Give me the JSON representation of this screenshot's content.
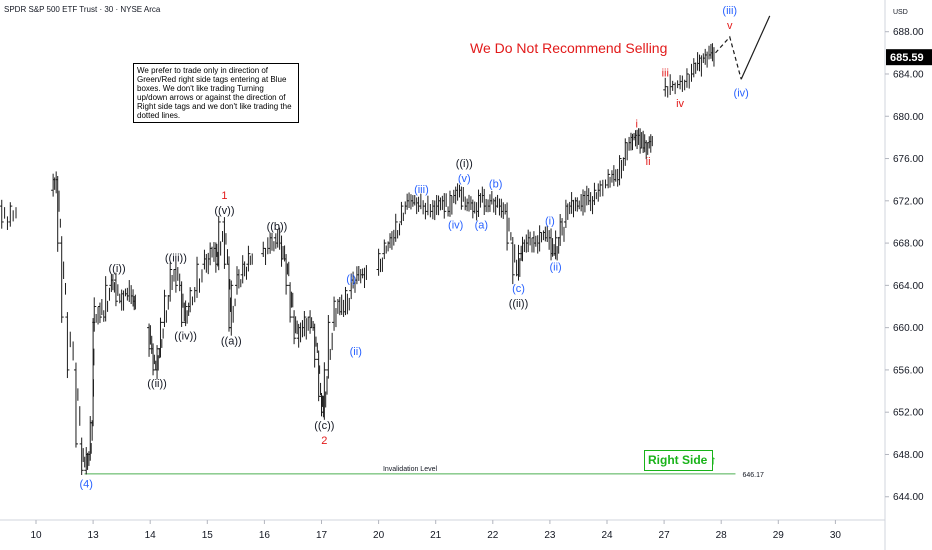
{
  "header": {
    "title": "SPDR S&P 500 ETF Trust · 30 · NYSE Arca"
  },
  "note": {
    "text": "We prefer to trade only in direction of Green/Red right side tags entering at Blue boxes. We don't like trading Turning up/down arrows or against the direction of Right side tags and we don't like trading the dotted lines."
  },
  "headline": {
    "text": "We Do Not Recommend Selling"
  },
  "right_side": {
    "label": "Right Side",
    "arrow": "↑"
  },
  "colors": {
    "red": "#e21a1a",
    "blue": "#2962ff",
    "black": "#131722",
    "green": "#19b319",
    "bars": "#1c1c1c",
    "axis_text": "#131722"
  },
  "chart_data": {
    "type": "ohlc",
    "currency": "USD",
    "y_ticks": [
      644,
      648,
      652,
      656,
      660,
      664,
      668,
      672,
      676,
      680,
      684,
      688
    ],
    "y_tick_labels": [
      "644.00",
      "648.00",
      "652.00",
      "656.00",
      "660.00",
      "664.00",
      "668.00",
      "672.00",
      "676.00",
      "680.00",
      "684.00",
      "688.00"
    ],
    "ylim": [
      641.8,
      691.0
    ],
    "x_labels": [
      {
        "label": "10",
        "day": 0
      },
      {
        "label": "13",
        "day": 1
      },
      {
        "label": "14",
        "day": 2
      },
      {
        "label": "15",
        "day": 3
      },
      {
        "label": "16",
        "day": 4
      },
      {
        "label": "17",
        "day": 5
      },
      {
        "label": "20",
        "day": 6
      },
      {
        "label": "21",
        "day": 7
      },
      {
        "label": "22",
        "day": 8
      },
      {
        "label": "23",
        "day": 9
      },
      {
        "label": "24",
        "day": 10
      },
      {
        "label": "27",
        "day": 11
      },
      {
        "label": "28",
        "day": 12
      },
      {
        "label": "29",
        "day": 13
      },
      {
        "label": "30",
        "day": 14
      }
    ],
    "current_price": {
      "value": 685.59,
      "label": "685.59"
    },
    "invalidation": {
      "value": 646.17,
      "label": "646.17",
      "text": "Invalidation Level",
      "day_start": 0.85,
      "day_end": 12.25
    },
    "price_path": [
      [
        -0.6,
        671.5
      ],
      [
        -0.45,
        670.0
      ],
      [
        -0.3,
        671.5
      ],
      [
        -0.1,
        672.0
      ],
      [
        0.1,
        672.5
      ],
      [
        0.3,
        673.0
      ],
      [
        0.38,
        674.0
      ],
      [
        0.45,
        668.0
      ],
      [
        0.55,
        661.0
      ],
      [
        0.7,
        656.0
      ],
      [
        0.8,
        649.0
      ],
      [
        0.88,
        646.5
      ],
      [
        0.95,
        648.0
      ],
      [
        1.0,
        651.0
      ],
      [
        1.02,
        660.5
      ],
      [
        1.12,
        662.0
      ],
      [
        1.22,
        661.0
      ],
      [
        1.32,
        664.0
      ],
      [
        1.4,
        664.5
      ],
      [
        1.5,
        662.5
      ],
      [
        1.6,
        663.2
      ],
      [
        1.7,
        663.0
      ],
      [
        1.76,
        662.5
      ],
      [
        1.98,
        660.0
      ],
      [
        2.05,
        658.0
      ],
      [
        2.12,
        656.0
      ],
      [
        2.18,
        658.0
      ],
      [
        2.25,
        660.5
      ],
      [
        2.35,
        663.0
      ],
      [
        2.45,
        665.5
      ],
      [
        2.55,
        664.0
      ],
      [
        2.62,
        660.5
      ],
      [
        2.7,
        662.0
      ],
      [
        2.82,
        663.5
      ],
      [
        2.95,
        666.0
      ],
      [
        3.05,
        666.5
      ],
      [
        3.15,
        667.5
      ],
      [
        3.2,
        666.0
      ],
      [
        3.3,
        670.0
      ],
      [
        3.38,
        666.0
      ],
      [
        3.42,
        660.0
      ],
      [
        3.52,
        664.0
      ],
      [
        3.62,
        665.0
      ],
      [
        3.72,
        666.0
      ],
      [
        3.82,
        667.0
      ],
      [
        3.98,
        667.0
      ],
      [
        4.1,
        667.5
      ],
      [
        4.2,
        668.5
      ],
      [
        4.3,
        668.0
      ],
      [
        4.38,
        666.5
      ],
      [
        4.45,
        664.0
      ],
      [
        4.52,
        661.0
      ],
      [
        4.6,
        659.0
      ],
      [
        4.7,
        660.0
      ],
      [
        4.8,
        661.0
      ],
      [
        4.88,
        660.0
      ],
      [
        4.95,
        657.0
      ],
      [
        5.0,
        653.5
      ],
      [
        5.05,
        652.0
      ],
      [
        5.12,
        656.0
      ],
      [
        5.22,
        660.5
      ],
      [
        5.32,
        662.5
      ],
      [
        5.42,
        661.5
      ],
      [
        5.52,
        663.5
      ],
      [
        5.62,
        664.5
      ],
      [
        5.72,
        665.0
      ],
      [
        5.82,
        665.0
      ],
      [
        6.0,
        665.5
      ],
      [
        6.1,
        667.0
      ],
      [
        6.2,
        668.0
      ],
      [
        6.3,
        668.5
      ],
      [
        6.4,
        670.0
      ],
      [
        6.5,
        671.5
      ],
      [
        6.6,
        672.0
      ],
      [
        6.7,
        671.8
      ],
      [
        6.82,
        671.5
      ],
      [
        6.95,
        671.0
      ],
      [
        7.05,
        671.5
      ],
      [
        7.15,
        672.0
      ],
      [
        7.25,
        671.0
      ],
      [
        7.35,
        672.5
      ],
      [
        7.45,
        673.0
      ],
      [
        7.55,
        671.5
      ],
      [
        7.65,
        671.8
      ],
      [
        7.75,
        671.0
      ],
      [
        7.85,
        672.5
      ],
      [
        7.95,
        671.5
      ],
      [
        8.05,
        672.0
      ],
      [
        8.15,
        671.5
      ],
      [
        8.25,
        671.0
      ],
      [
        8.35,
        668.0
      ],
      [
        8.45,
        665.0
      ],
      [
        8.52,
        667.0
      ],
      [
        8.62,
        668.0
      ],
      [
        8.72,
        668.5
      ],
      [
        8.82,
        668.0
      ],
      [
        8.92,
        669.0
      ],
      [
        9.02,
        668.5
      ],
      [
        9.1,
        667.0
      ],
      [
        9.18,
        668.5
      ],
      [
        9.28,
        670.0
      ],
      [
        9.38,
        671.5
      ],
      [
        9.48,
        672.0
      ],
      [
        9.58,
        671.5
      ],
      [
        9.68,
        672.5
      ],
      [
        9.78,
        672.0
      ],
      [
        9.88,
        673.0
      ],
      [
        10.02,
        673.5
      ],
      [
        10.12,
        674.5
      ],
      [
        10.22,
        674.0
      ],
      [
        10.32,
        676.0
      ],
      [
        10.42,
        677.5
      ],
      [
        10.5,
        678.0
      ],
      [
        10.58,
        678.2
      ],
      [
        10.66,
        677.0
      ],
      [
        10.74,
        677.5
      ],
      [
        10.82,
        677.6
      ],
      [
        11.02,
        682.5
      ],
      [
        11.15,
        682.8
      ],
      [
        11.28,
        683.0
      ],
      [
        11.4,
        683.3
      ],
      [
        11.52,
        684.0
      ],
      [
        11.62,
        685.0
      ],
      [
        11.72,
        685.5
      ],
      [
        11.82,
        685.8
      ],
      [
        11.9,
        686.0
      ]
    ],
    "projection": {
      "dashed": [
        [
          11.9,
          686.0
        ],
        [
          12.15,
          687.5
        ],
        [
          12.35,
          683.5
        ]
      ],
      "solid": [
        [
          12.35,
          683.5
        ],
        [
          12.85,
          689.5
        ]
      ]
    },
    "wave_labels": [
      {
        "text": "(4)",
        "day": 0.88,
        "price": 646.5,
        "color": "blue",
        "pos": "below"
      },
      {
        "text": "((i))",
        "day": 1.42,
        "price": 664.5,
        "color": "black",
        "pos": "above"
      },
      {
        "text": "((ii))",
        "day": 2.12,
        "price": 656.0,
        "color": "black",
        "pos": "below"
      },
      {
        "text": "((iii))",
        "day": 2.45,
        "price": 665.5,
        "color": "black",
        "pos": "above"
      },
      {
        "text": "((iv))",
        "day": 2.62,
        "price": 660.5,
        "color": "black",
        "pos": "below"
      },
      {
        "text": "((v))",
        "day": 3.3,
        "price": 670.0,
        "color": "black",
        "pos": "above"
      },
      {
        "text": "1",
        "day": 3.3,
        "price": 670.0,
        "color": "red",
        "pos": "above2"
      },
      {
        "text": "((a))",
        "day": 3.42,
        "price": 660.0,
        "color": "black",
        "pos": "below"
      },
      {
        "text": "((b))",
        "day": 4.22,
        "price": 668.5,
        "color": "black",
        "pos": "above"
      },
      {
        "text": "((c))",
        "day": 5.05,
        "price": 652.0,
        "color": "black",
        "pos": "below"
      },
      {
        "text": "2",
        "day": 5.05,
        "price": 652.0,
        "color": "red",
        "pos": "below2"
      },
      {
        "text": "(i)",
        "day": 5.52,
        "price": 663.5,
        "color": "blue",
        "pos": "above"
      },
      {
        "text": "(ii)",
        "day": 5.6,
        "price": 659.0,
        "color": "blue",
        "pos": "below"
      },
      {
        "text": "(iii)",
        "day": 6.75,
        "price": 672.0,
        "color": "blue",
        "pos": "above"
      },
      {
        "text": "(iv)",
        "day": 7.35,
        "price": 671.0,
        "color": "blue",
        "pos": "below"
      },
      {
        "text": "(v)",
        "day": 7.5,
        "price": 673.0,
        "color": "blue",
        "pos": "above"
      },
      {
        "text": "((i))",
        "day": 7.5,
        "price": 673.0,
        "color": "black",
        "pos": "above2"
      },
      {
        "text": "(a)",
        "day": 7.8,
        "price": 671.0,
        "color": "blue",
        "pos": "below"
      },
      {
        "text": "(b)",
        "day": 8.05,
        "price": 672.5,
        "color": "blue",
        "pos": "above"
      },
      {
        "text": "(c)",
        "day": 8.45,
        "price": 665.0,
        "color": "blue",
        "pos": "below"
      },
      {
        "text": "((ii))",
        "day": 8.45,
        "price": 665.0,
        "color": "black",
        "pos": "below2"
      },
      {
        "text": "(i)",
        "day": 9.0,
        "price": 669.0,
        "color": "blue",
        "pos": "above"
      },
      {
        "text": "(ii)",
        "day": 9.1,
        "price": 667.0,
        "color": "blue",
        "pos": "below"
      },
      {
        "text": "i",
        "day": 10.52,
        "price": 678.2,
        "color": "red",
        "pos": "above"
      },
      {
        "text": "ii",
        "day": 10.72,
        "price": 677.0,
        "color": "red",
        "pos": "below"
      },
      {
        "text": "iii",
        "day": 11.02,
        "price": 683.0,
        "color": "red",
        "pos": "above"
      },
      {
        "text": "iv",
        "day": 11.28,
        "price": 682.5,
        "color": "red",
        "pos": "below"
      },
      {
        "text": "v",
        "day": 12.15,
        "price": 687.5,
        "color": "red",
        "pos": "above"
      },
      {
        "text": "(iii)",
        "day": 12.15,
        "price": 687.5,
        "color": "blue",
        "pos": "above2"
      },
      {
        "text": "(iv)",
        "day": 12.35,
        "price": 683.5,
        "color": "blue",
        "pos": "below"
      }
    ]
  }
}
